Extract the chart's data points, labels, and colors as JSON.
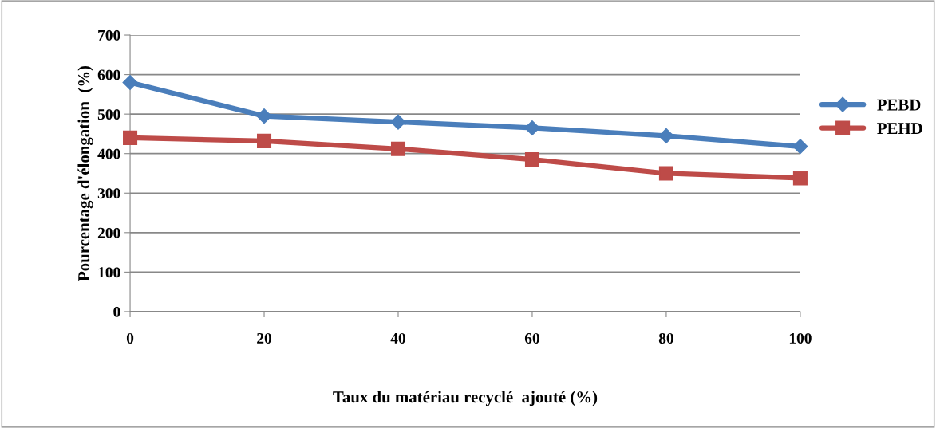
{
  "chart_data": {
    "type": "line",
    "xlabel": "Taux du matériau recyclé  ajouté (%)",
    "ylabel": "Pourcentage d'élongation  (%)",
    "x": [
      0,
      20,
      40,
      60,
      80,
      100
    ],
    "series": [
      {
        "name": "PEBD",
        "color": "#4a7ebb",
        "marker": "diamond",
        "values": [
          580,
          495,
          480,
          465,
          445,
          418
        ]
      },
      {
        "name": "PEHD",
        "color": "#be4b48",
        "marker": "square",
        "values": [
          440,
          432,
          412,
          385,
          350,
          338
        ]
      }
    ],
    "xlim": [
      0,
      100
    ],
    "xticks": [
      0,
      20,
      40,
      60,
      80,
      100
    ],
    "ylim": [
      0,
      700
    ],
    "yticks": [
      0,
      100,
      200,
      300,
      400,
      500,
      600,
      700
    ],
    "grid": "y",
    "legend": "right",
    "line_style": "solid"
  }
}
